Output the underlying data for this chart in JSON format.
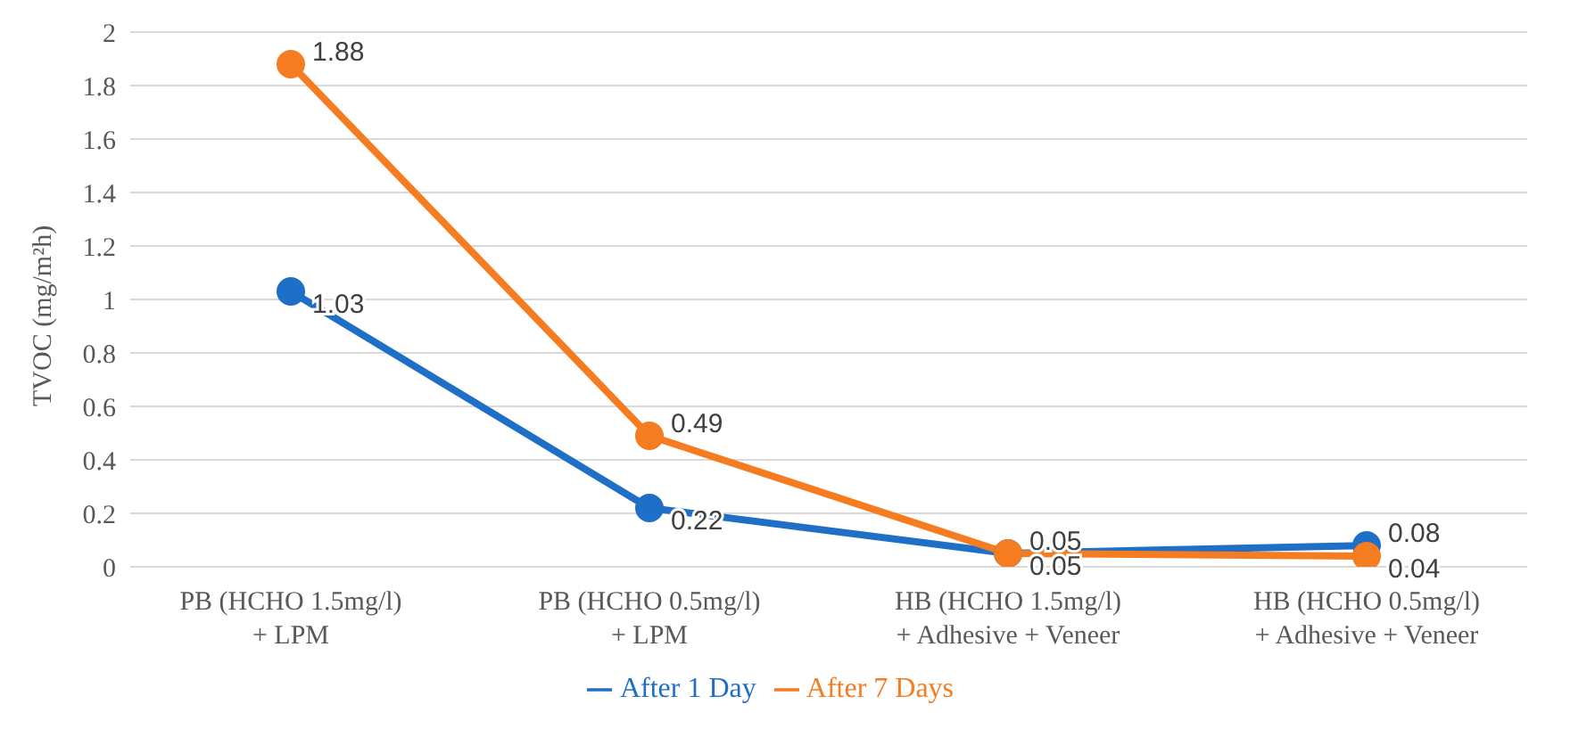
{
  "chart_data": {
    "type": "line",
    "ylabel": "TVOC (mg/m²h)",
    "categories": [
      "PB (HCHO 1.5mg/l)\n+ LPM",
      "PB (HCHO 0.5mg/l)\n+ LPM",
      "HB (HCHO 1.5mg/l)\n+ Adhesive + Veneer",
      "HB (HCHO 0.5mg/l)\n+ Adhesive + Veneer"
    ],
    "series": [
      {
        "name": "After 1 Day",
        "color": "#1f6fc6",
        "values": [
          1.03,
          0.22,
          0.05,
          0.08
        ]
      },
      {
        "name": "After 7 Days",
        "color": "#f57c20",
        "values": [
          1.88,
          0.49,
          0.05,
          0.04
        ]
      }
    ],
    "ylim": [
      0,
      2
    ],
    "yticks": [
      0,
      0.2,
      0.4,
      0.6,
      0.8,
      1,
      1.2,
      1.4,
      1.6,
      1.8,
      2
    ],
    "grid": "y",
    "legend": "bottom",
    "marker": "circle",
    "line_style": "solid",
    "data_labels": true
  }
}
